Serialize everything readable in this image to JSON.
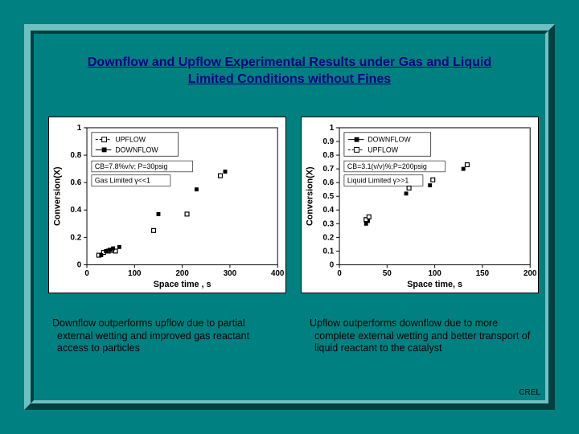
{
  "title_line1": "Downflow and Upflow Experimental Results under Gas and Liquid",
  "title_line2": "Limited Conditions without Fines",
  "footer": "CREL",
  "caption_left": "Downflow outperforms upflow due to partial external wetting and improved gas reactant access to particles",
  "caption_right": "Upflow outperforms downflow due to more complete external wetting and better transport of liquid reactant to the catalyst",
  "chart_left": {
    "type": "scatter",
    "background_color": "#ffffff",
    "axis_color": "#000000",
    "ylabel": "Conversion(X)",
    "xlabel": "Space time , s",
    "xlim": [
      0,
      400
    ],
    "xticks": [
      0,
      100,
      200,
      300,
      400
    ],
    "ylim": [
      0,
      1
    ],
    "yticks": [
      0,
      0.2,
      0.4,
      0.6,
      0.8,
      1
    ],
    "legend": [
      {
        "label": "UPFLOW",
        "marker": "square-open",
        "line": "dash"
      },
      {
        "label": "DOWNFLOW",
        "marker": "square-filled",
        "line": "solid"
      }
    ],
    "condition": "CB=7.8%v/v; P=30psig",
    "note": "Gas Limited γ<<1",
    "series": {
      "upflow": {
        "marker": "square-open",
        "color": "#000000",
        "size": 5,
        "points": [
          [
            25,
            0.07
          ],
          [
            35,
            0.09
          ],
          [
            45,
            0.1
          ],
          [
            50,
            0.105
          ],
          [
            60,
            0.1
          ],
          [
            140,
            0.25
          ],
          [
            210,
            0.37
          ],
          [
            280,
            0.65
          ]
        ]
      },
      "downflow": {
        "marker": "square-filled",
        "color": "#000000",
        "size": 5,
        "points": [
          [
            30,
            0.07
          ],
          [
            40,
            0.1
          ],
          [
            48,
            0.11
          ],
          [
            55,
            0.12
          ],
          [
            68,
            0.13
          ],
          [
            150,
            0.37
          ],
          [
            230,
            0.55
          ],
          [
            290,
            0.68
          ]
        ]
      }
    }
  },
  "chart_right": {
    "type": "scatter",
    "background_color": "#ffffff",
    "axis_color": "#000000",
    "ylabel": "Conversion(X)",
    "xlabel": "Space time, s",
    "xlim": [
      0,
      200
    ],
    "xticks": [
      0,
      50,
      100,
      150,
      200
    ],
    "ylim": [
      0,
      1
    ],
    "yticks": [
      0,
      0.1,
      0.2,
      0.3,
      0.4,
      0.5,
      0.6,
      0.7,
      0.8,
      0.9,
      1
    ],
    "legend": [
      {
        "label": "DOWNFLOW",
        "marker": "square-filled",
        "line": "solid"
      },
      {
        "label": "UPFLOW",
        "marker": "square-open",
        "line": "dash"
      }
    ],
    "condition": "CB=3.1(v/v)%;P=200psig",
    "note": "Liquid Limited γ>>1",
    "series": {
      "downflow": {
        "marker": "square-filled",
        "color": "#000000",
        "size": 5,
        "points": [
          [
            28,
            0.3
          ],
          [
            30,
            0.32
          ],
          [
            70,
            0.52
          ],
          [
            95,
            0.58
          ],
          [
            130,
            0.7
          ]
        ]
      },
      "upflow": {
        "marker": "square-open",
        "color": "#000000",
        "size": 5,
        "points": [
          [
            28,
            0.33
          ],
          [
            31,
            0.35
          ],
          [
            73,
            0.56
          ],
          [
            98,
            0.62
          ],
          [
            134,
            0.73
          ]
        ]
      }
    }
  }
}
